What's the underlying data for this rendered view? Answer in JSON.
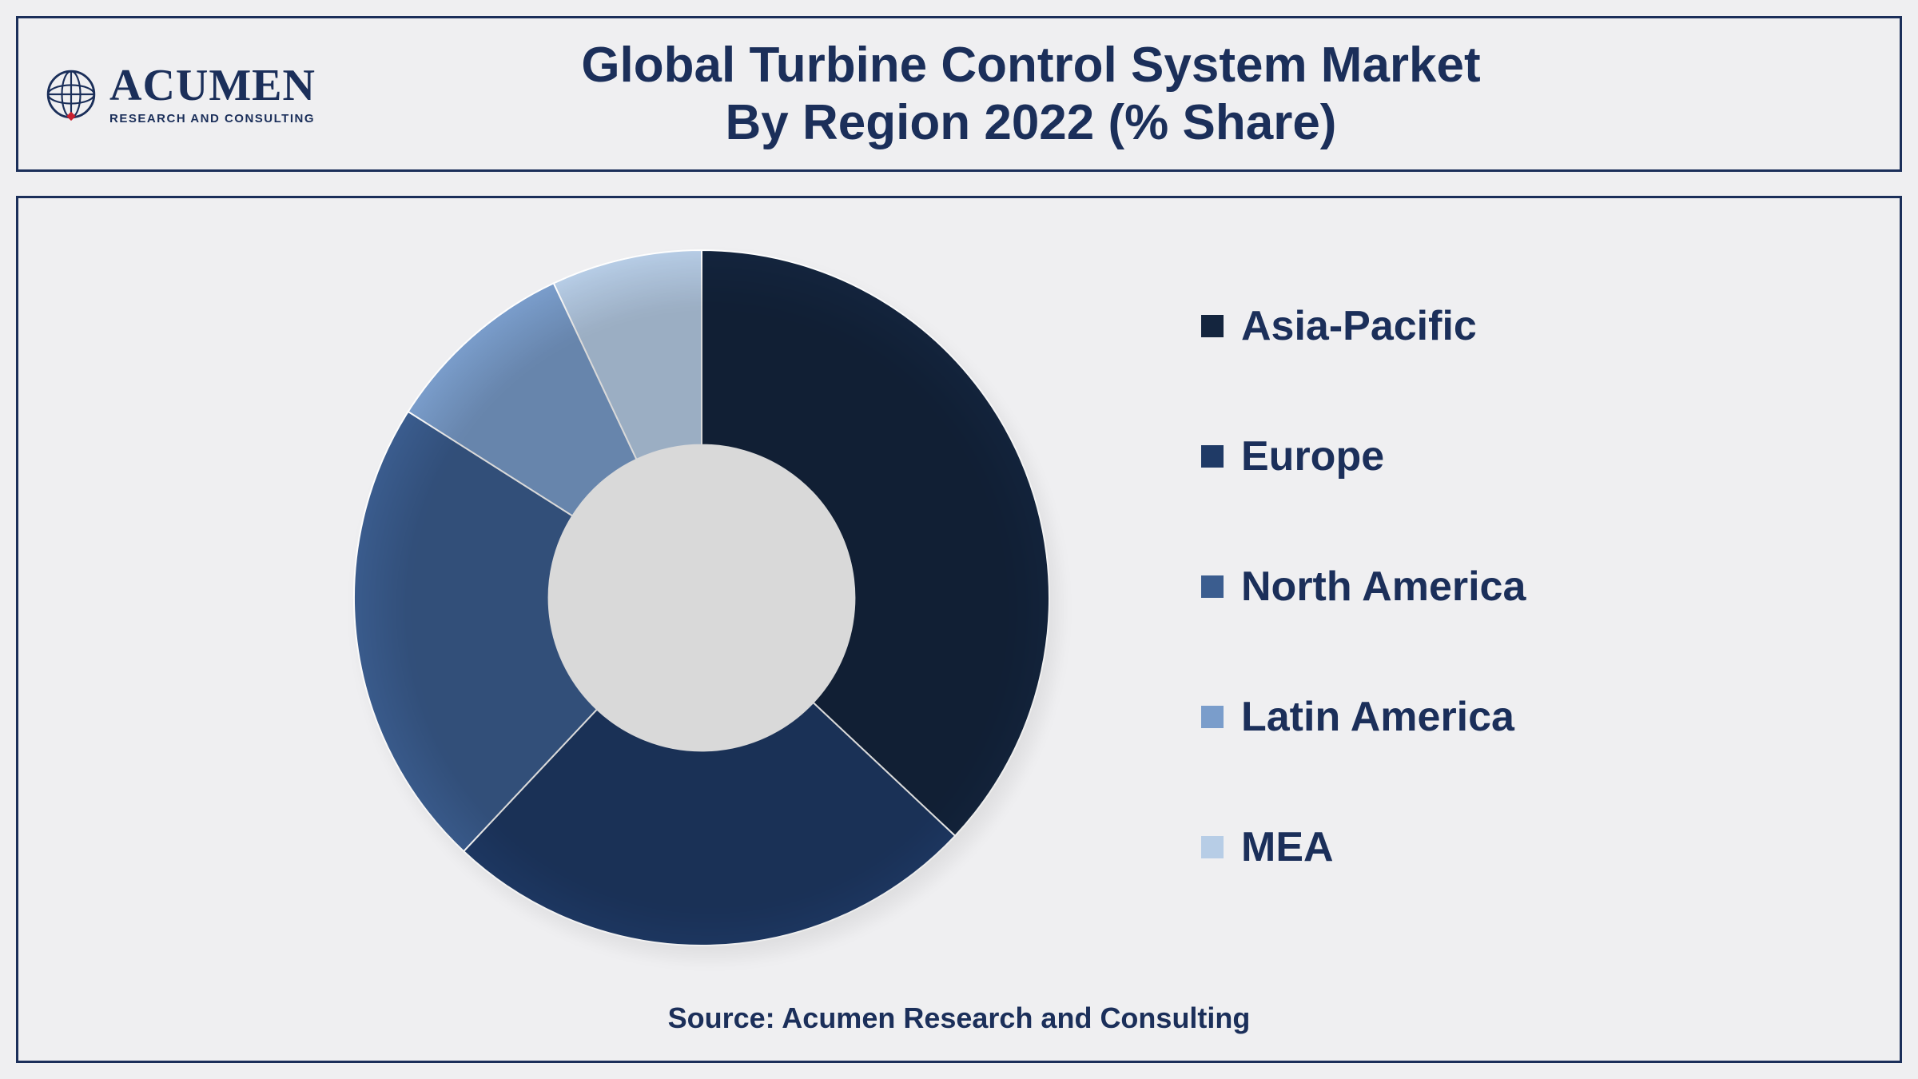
{
  "logo": {
    "main": "ACUMEN",
    "sub": "RESEARCH AND CONSULTING",
    "globe_color": "#1b2f5a",
    "diamond_color": "#c8202f"
  },
  "title": {
    "line1": "Global Turbine Control System Market",
    "line2": "By Region 2022 (% Share)",
    "color": "#1b2f5a",
    "fontsize": 62
  },
  "chart": {
    "type": "donut",
    "inner_radius_ratio": 0.44,
    "background_color": "#efeff1",
    "hole_color": "#ffffff",
    "border_color": "#1b2f5a",
    "slices": [
      {
        "label": "Asia-Pacific",
        "value": 37,
        "color": "#14253e"
      },
      {
        "label": "Europe",
        "value": 25,
        "color": "#1f3a66"
      },
      {
        "label": "North America",
        "value": 22,
        "color": "#3b5d8f"
      },
      {
        "label": "Latin America",
        "value": 9,
        "color": "#7a9dcb"
      },
      {
        "label": "MEA",
        "value": 7,
        "color": "#b7cde6"
      }
    ],
    "start_angle_deg": -90
  },
  "legend": {
    "marker_size": 28,
    "font_color": "#1b2f5a",
    "font_size": 52
  },
  "source": "Source: Acumen Research and Consulting"
}
